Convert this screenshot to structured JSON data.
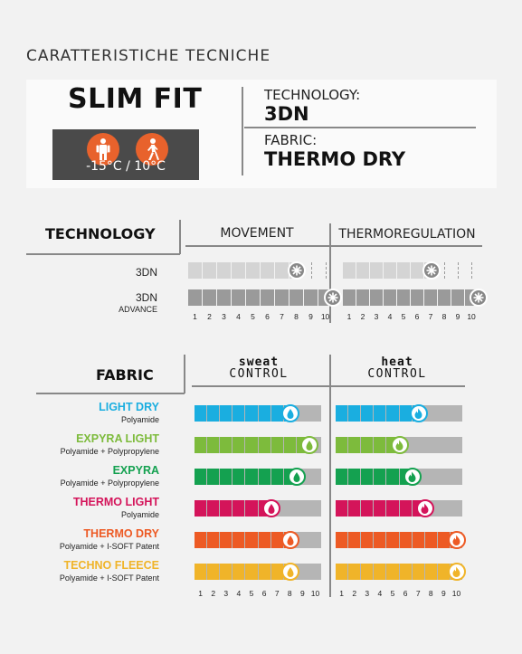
{
  "header": "CARATTERISTICHE TECNICHE",
  "fit": {
    "title": "SLIM FIT",
    "temperature": "-15°C / 10°C",
    "icons": [
      "standing-person-icon",
      "walking-person-icon"
    ],
    "accent": "#e8622c"
  },
  "info": {
    "technology_label": "TECHNOLOGY:",
    "technology_value": "3DN",
    "fabric_label": "FABRIC:",
    "fabric_value": "THERMO DRY"
  },
  "technology": {
    "heading": "TECHNOLOGY",
    "columns": [
      "MOVEMENT",
      "THERMOREGULATION"
    ],
    "scale": [
      "1",
      "2",
      "3",
      "4",
      "5",
      "6",
      "7",
      "8",
      "9",
      "10"
    ],
    "rows": [
      {
        "label": "3DN",
        "sublabel": "",
        "movement": 7.5,
        "thermoregulation": 6.5,
        "color": "#d4d4d4"
      },
      {
        "label": "3DN",
        "sublabel": "ADVANCE",
        "movement": 10,
        "thermoregulation": 10,
        "color": "#9a9a9a"
      }
    ]
  },
  "fabric": {
    "heading": "FABRIC",
    "columns": [
      {
        "line1": "sweat",
        "line2": "CONTROL"
      },
      {
        "line1": "heat",
        "line2": "CONTROL"
      }
    ],
    "scale": [
      "1",
      "2",
      "3",
      "4",
      "5",
      "6",
      "7",
      "8",
      "9",
      "10"
    ],
    "rows": [
      {
        "name": "LIGHT DRY",
        "material": "Polyamide",
        "color": "#1aaee0",
        "sweat": 7.5,
        "heat": 6.5
      },
      {
        "name": "EXPYRA LIGHT",
        "material": "Polyamide + Polypropylene",
        "color": "#7dbb3c",
        "sweat": 9,
        "heat": 5
      },
      {
        "name": "EXPYRA",
        "material": "Polyamide + Polypropylene",
        "color": "#14a150",
        "sweat": 8,
        "heat": 6
      },
      {
        "name": "THERMO LIGHT",
        "material": "Polyamide",
        "color": "#d4145a",
        "sweat": 6,
        "heat": 7
      },
      {
        "name": "THERMO DRY",
        "material": "Polyamide + I-SOFT Patent",
        "color": "#ed5a24",
        "sweat": 7.5,
        "heat": 9.5
      },
      {
        "name": "TECHNO FLEECE",
        "material": "Polyamide + I-SOFT Patent",
        "color": "#f0b429",
        "sweat": 7.5,
        "heat": 9.5
      }
    ]
  }
}
